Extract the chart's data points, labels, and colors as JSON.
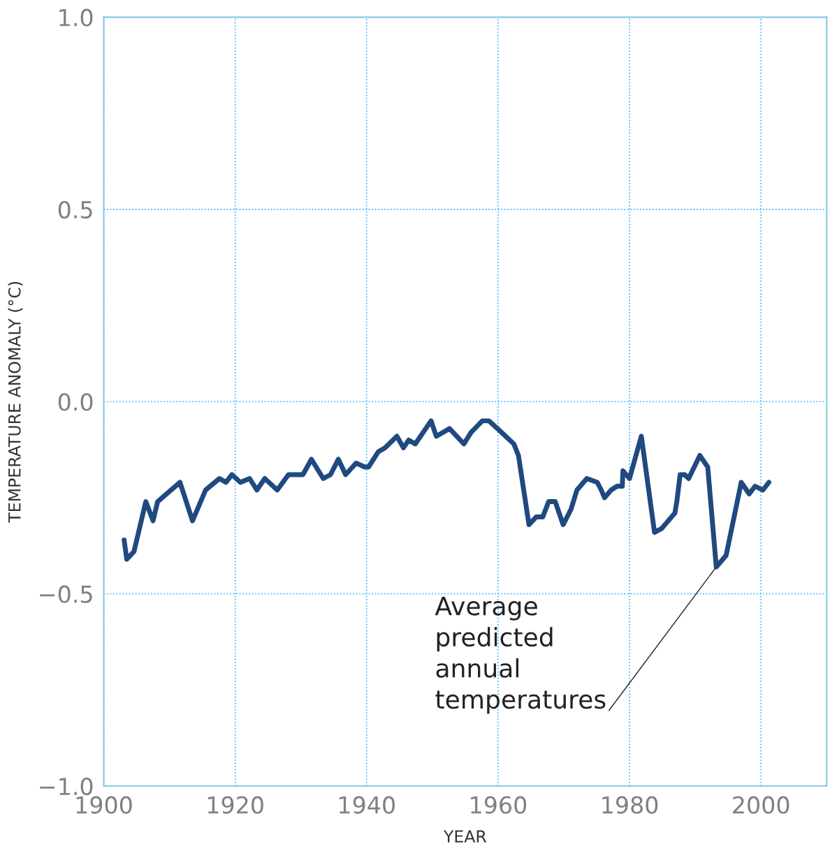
{
  "chart_data": {
    "type": "line",
    "xlabel": "YEAR",
    "ylabel": "TEMPERATURE ANOMALY (°C)",
    "xlim": [
      1900,
      2010
    ],
    "ylim": [
      -1.0,
      1.0
    ],
    "xticks": [
      1900,
      1920,
      1940,
      1960,
      1980,
      2000
    ],
    "yticks": [
      {
        "value": -1.0,
        "label": "−1.0"
      },
      {
        "value": -0.5,
        "label": "−0.5"
      },
      {
        "value": 0.0,
        "label": "0.0"
      },
      {
        "value": 0.5,
        "label": "0.5"
      },
      {
        "value": 1.0,
        "label": "1.0"
      }
    ],
    "grid": true,
    "legend": false,
    "marker": "none",
    "line_style": "solid",
    "series": [
      {
        "color": "#1f4a80",
        "x": [
          1903.1,
          1903.5,
          1904.6,
          1906.4,
          1907.5,
          1908.2,
          1911.6,
          1913.5,
          1915.5,
          1917.6,
          1918.6,
          1919.5,
          1920.8,
          1922.2,
          1923.3,
          1924.5,
          1926.4,
          1928.1,
          1929.0,
          1930.3,
          1931.6,
          1933.4,
          1934.5,
          1935.7,
          1936.8,
          1938.4,
          1939.7,
          1940.3,
          1941.8,
          1942.8,
          1944.6,
          1945.6,
          1946.4,
          1947.4,
          1949.8,
          1950.6,
          1952.6,
          1954.8,
          1955.9,
          1957.6,
          1958.6,
          1959.9,
          1962.4,
          1963.1,
          1964.7,
          1965.8,
          1966.8,
          1967.7,
          1968.7,
          1969.9,
          1971.1,
          1972.0,
          1973.5,
          1975.1,
          1975.7,
          1976.2,
          1977.2,
          1978.1,
          1978.9,
          1979.0,
          1980.0,
          1981.8,
          1983.8,
          1984.9,
          1986.9,
          1987.2,
          1987.7,
          1988.4,
          1989.0,
          1990.7,
          1991.9,
          1993.2,
          1994.7,
          1997.0,
          1998.2,
          1999.1,
          2000.3,
          2001.2
        ],
        "values": [
          -0.36,
          -0.41,
          -0.39,
          -0.26,
          -0.31,
          -0.26,
          -0.21,
          -0.31,
          -0.23,
          -0.2,
          -0.21,
          -0.19,
          -0.21,
          -0.2,
          -0.23,
          -0.2,
          -0.23,
          -0.19,
          -0.19,
          -0.19,
          -0.15,
          -0.2,
          -0.19,
          -0.15,
          -0.19,
          -0.16,
          -0.17,
          -0.17,
          -0.13,
          -0.12,
          -0.09,
          -0.12,
          -0.1,
          -0.11,
          -0.05,
          -0.09,
          -0.07,
          -0.11,
          -0.08,
          -0.05,
          -0.05,
          -0.07,
          -0.11,
          -0.14,
          -0.32,
          -0.3,
          -0.3,
          -0.26,
          -0.26,
          -0.32,
          -0.28,
          -0.23,
          -0.2,
          -0.21,
          -0.23,
          -0.25,
          -0.23,
          -0.22,
          -0.22,
          -0.18,
          -0.2,
          -0.09,
          -0.34,
          -0.33,
          -0.29,
          -0.26,
          -0.19,
          -0.19,
          -0.2,
          -0.14,
          -0.17,
          -0.43,
          -0.4,
          -0.21,
          -0.24,
          -0.22,
          -0.23,
          -0.21
        ]
      }
    ],
    "annotations": [
      {
        "text": "Average\npredicted\nannual\ntemperatures",
        "x": 1993.2,
        "y": -0.43
      }
    ]
  }
}
